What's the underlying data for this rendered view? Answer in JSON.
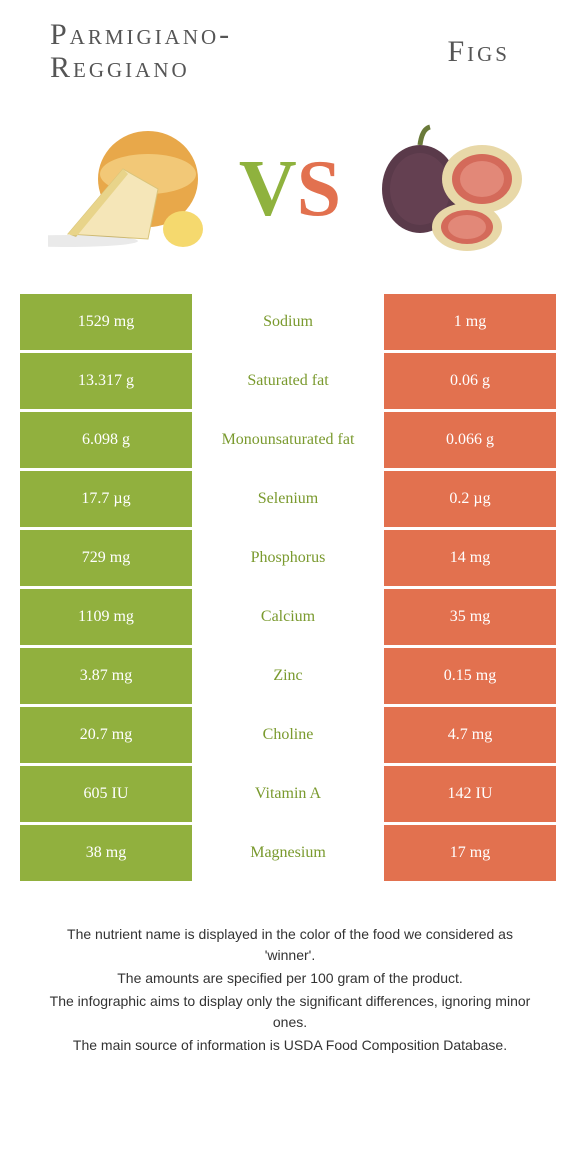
{
  "colors": {
    "green": "#91b03e",
    "orange": "#e2714f",
    "green_text": "#7a9a2e",
    "orange_text": "#d35e3e"
  },
  "food_left": {
    "title_line1": "Parmigiano-",
    "title_line2": "Reggiano"
  },
  "food_right": {
    "title": "Figs"
  },
  "vs": {
    "v": "V",
    "s": "S"
  },
  "rows": [
    {
      "left": "1529 mg",
      "label": "Sodium",
      "right": "1 mg",
      "winner": "left"
    },
    {
      "left": "13.317 g",
      "label": "Saturated fat",
      "right": "0.06 g",
      "winner": "left"
    },
    {
      "left": "6.098 g",
      "label": "Monounsaturated fat",
      "right": "0.066 g",
      "winner": "left"
    },
    {
      "left": "17.7 µg",
      "label": "Selenium",
      "right": "0.2 µg",
      "winner": "left"
    },
    {
      "left": "729 mg",
      "label": "Phosphorus",
      "right": "14 mg",
      "winner": "left"
    },
    {
      "left": "1109 mg",
      "label": "Calcium",
      "right": "35 mg",
      "winner": "left"
    },
    {
      "left": "3.87 mg",
      "label": "Zinc",
      "right": "0.15 mg",
      "winner": "left"
    },
    {
      "left": "20.7 mg",
      "label": "Choline",
      "right": "4.7 mg",
      "winner": "left"
    },
    {
      "left": "605 IU",
      "label": "Vitamin A",
      "right": "142 IU",
      "winner": "left"
    },
    {
      "left": "38 mg",
      "label": "Magnesium",
      "right": "17 mg",
      "winner": "left"
    }
  ],
  "footer": {
    "line1": "The nutrient name is displayed in the color of the food we considered as 'winner'.",
    "line2": "The amounts are specified per 100 gram of the product.",
    "line3": "The infographic aims to display only the significant differences, ignoring minor ones.",
    "line4": "The main source of information is USDA Food Composition Database."
  }
}
